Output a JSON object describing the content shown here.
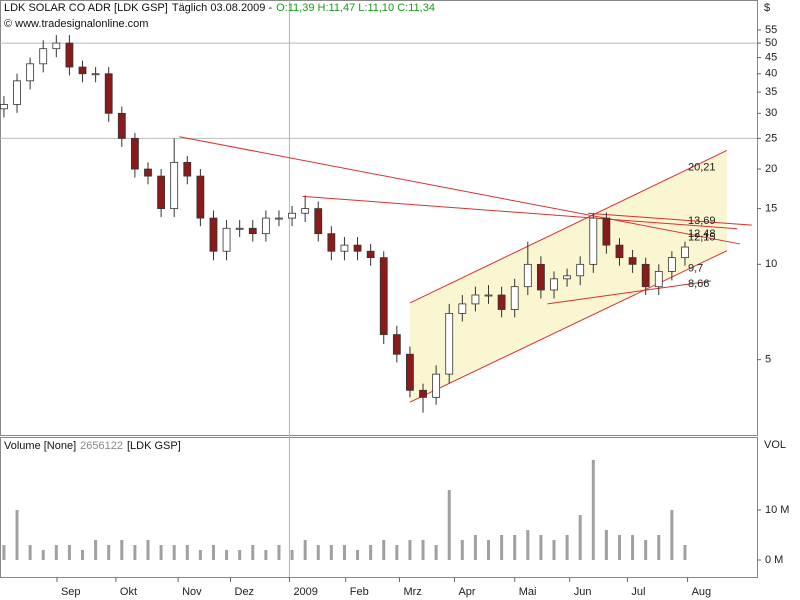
{
  "chart_data": [
    {
      "type": "candlestick",
      "title": "LDK SOLAR CO ADR [LDK GSP]",
      "subtitle": "Täglich 03.08.2009 -",
      "quote": "O:11,39 H:11,47 L:11,10 C:11,34",
      "source": "© www.tradesignalonline.com",
      "y_unit": "$",
      "log_scale": true,
      "up_color": "#ffffff",
      "down_color": "#8b1a1a",
      "x": [
        0,
        1,
        2,
        3,
        4,
        5,
        6,
        7,
        8,
        9,
        10,
        11,
        12,
        13,
        14,
        15,
        16,
        17,
        18,
        19,
        20,
        21,
        22,
        23,
        24,
        25,
        26,
        27,
        28,
        29,
        30,
        31,
        32,
        33,
        34,
        35,
        36,
        37,
        38,
        39,
        40,
        41,
        42,
        43,
        44,
        45,
        46,
        47,
        48,
        49,
        50,
        51,
        52
      ],
      "open": [
        31,
        32,
        38,
        43,
        48,
        50,
        42,
        40,
        40,
        30,
        25,
        20,
        19,
        15,
        21,
        19,
        14,
        11,
        13,
        13,
        12.5,
        14,
        14,
        14.5,
        15,
        12.5,
        11,
        11.5,
        11,
        10.5,
        6,
        5.2,
        4,
        3.8,
        4.5,
        7,
        7.5,
        8,
        8,
        7.2,
        8.5,
        10,
        8.3,
        9,
        9.2,
        10,
        14,
        11.5,
        10.5,
        10,
        8.5,
        9.5,
        10.5
      ],
      "high": [
        34,
        40,
        45,
        51,
        53,
        53,
        44,
        42,
        42,
        31.5,
        26,
        21,
        20,
        25,
        22,
        20,
        14.8,
        13.8,
        13.8,
        13.8,
        14.8,
        14.8,
        15.3,
        16.5,
        15.8,
        13.2,
        12.2,
        12.2,
        11.6,
        11,
        6.4,
        5.5,
        4.2,
        4.8,
        7.5,
        8,
        8.5,
        8.6,
        8.5,
        9,
        11.8,
        10.6,
        9.5,
        9.7,
        10.6,
        14.5,
        14.6,
        12.1,
        11.1,
        10.5,
        10,
        11,
        11.8
      ],
      "low": [
        29.1,
        30.1,
        35.7,
        40.4,
        45.1,
        39.5,
        37.6,
        37.6,
        28.2,
        23.5,
        18.8,
        17.9,
        14.1,
        14.1,
        17.9,
        13.2,
        10.3,
        10.3,
        12.2,
        11.8,
        11.8,
        13.2,
        13.2,
        13.6,
        11.8,
        10.3,
        10.3,
        10.3,
        9.9,
        5.6,
        4.9,
        3.8,
        3.4,
        3.6,
        4.2,
        6.6,
        7.1,
        7.5,
        6.8,
        6.8,
        8,
        7.8,
        7.8,
        8.5,
        8.6,
        9.4,
        10.8,
        9.9,
        9.4,
        8,
        8,
        8.9,
        9.9
      ],
      "close": [
        32,
        38,
        43,
        48,
        50,
        42,
        40,
        40,
        30,
        25,
        20,
        19,
        15,
        21,
        19,
        14,
        11,
        13,
        13,
        12.5,
        14,
        14,
        14.5,
        15,
        12.5,
        11,
        11.5,
        11,
        10.5,
        6,
        5.2,
        4,
        3.8,
        4.5,
        7,
        7.5,
        8,
        8,
        7.2,
        8.5,
        10,
        8.3,
        9,
        9.2,
        10,
        14,
        11.5,
        10.5,
        10,
        8.5,
        9.5,
        10.5,
        11.34
      ],
      "xlim": [
        -0.3,
        57.5
      ],
      "ylim": [
        2.89,
        68.4
      ],
      "yticks": [
        5,
        10,
        15,
        20,
        25,
        30,
        35,
        40,
        45,
        50,
        55
      ],
      "ygrid": [
        25,
        50
      ],
      "xgrid": [
        21.8
      ],
      "xgrid_color": "#8fd18f",
      "channel": {
        "color": "#d83030",
        "fill": "#faf6d2",
        "upper": [
          [
            31,
            7.55
          ],
          [
            55.2,
            22.9
          ]
        ],
        "lower": [
          [
            31,
            3.67
          ],
          [
            55.2,
            11.04
          ]
        ]
      },
      "drawings": [
        {
          "color": "#d83030",
          "points": [
            [
              13.4,
              25.3
            ],
            [
              56.2,
              11.6
            ]
          ]
        },
        {
          "color": "#d83030",
          "points": [
            [
              22.8,
              16.4
            ],
            [
              56,
              12.95
            ]
          ]
        },
        {
          "color": "#d83030",
          "points": [
            [
              44.6,
              14.5
            ],
            [
              57.1,
              13.3
            ]
          ]
        },
        {
          "color": "#d83030",
          "points": [
            [
              41.5,
              7.5
            ],
            [
              54,
              8.86
            ]
          ]
        }
      ],
      "level_labels": [
        {
          "value": 20.21,
          "label": "20,21"
        },
        {
          "value": 13.69,
          "label": "13,69"
        },
        {
          "value": 12.48,
          "label": "12,48"
        },
        {
          "value": 12.15,
          "label": "12,15"
        },
        {
          "value": 9.7,
          "label": "9,7"
        },
        {
          "value": 8.66,
          "label": "8,66"
        }
      ],
      "level_label_color": "#cc4a4a"
    },
    {
      "type": "bar",
      "title": "Volume [None]",
      "last_value": "2656122",
      "symbol": "[LDK GSP]",
      "y_label": "VOL",
      "color": "#a0a0a0",
      "x": [
        0,
        1,
        2,
        3,
        4,
        5,
        6,
        7,
        8,
        9,
        10,
        11,
        12,
        13,
        14,
        15,
        16,
        17,
        18,
        19,
        20,
        21,
        22,
        23,
        24,
        25,
        26,
        27,
        28,
        29,
        30,
        31,
        32,
        33,
        34,
        35,
        36,
        37,
        38,
        39,
        40,
        41,
        42,
        43,
        44,
        45,
        46,
        47,
        48,
        49,
        50,
        51,
        52
      ],
      "values": [
        3,
        10,
        3,
        2,
        3,
        3,
        2,
        4,
        3,
        4,
        3,
        4,
        3,
        3,
        3,
        2,
        3,
        2,
        2,
        3,
        2,
        3,
        2,
        4,
        3,
        3,
        3,
        2,
        3,
        4,
        3,
        4,
        4,
        3,
        14,
        4,
        5,
        4,
        5,
        5,
        6,
        5,
        4,
        5,
        9,
        20,
        6,
        5,
        5,
        4,
        5,
        10,
        3
      ],
      "xlim": [
        -0.3,
        57.5
      ],
      "ylim": [
        -3.4,
        24.6
      ],
      "yticks": [
        {
          "value": 0,
          "label": "0 M"
        },
        {
          "value": 10,
          "label": "10 M"
        }
      ],
      "xticks": [
        {
          "value": 4.05,
          "label": "Sep"
        },
        {
          "value": 8.55,
          "label": "Okt"
        },
        {
          "value": 13.3,
          "label": "Nov"
        },
        {
          "value": 17.3,
          "label": "Dez"
        },
        {
          "value": 21.8,
          "label": "2009"
        },
        {
          "value": 26.1,
          "label": "Feb"
        },
        {
          "value": 30.2,
          "label": "Mrz"
        },
        {
          "value": 34.4,
          "label": "Apr"
        },
        {
          "value": 39,
          "label": "Mai"
        },
        {
          "value": 43.2,
          "label": "Jun"
        },
        {
          "value": 47.6,
          "label": "Jul"
        },
        {
          "value": 52.2,
          "label": "Aug"
        }
      ]
    }
  ]
}
